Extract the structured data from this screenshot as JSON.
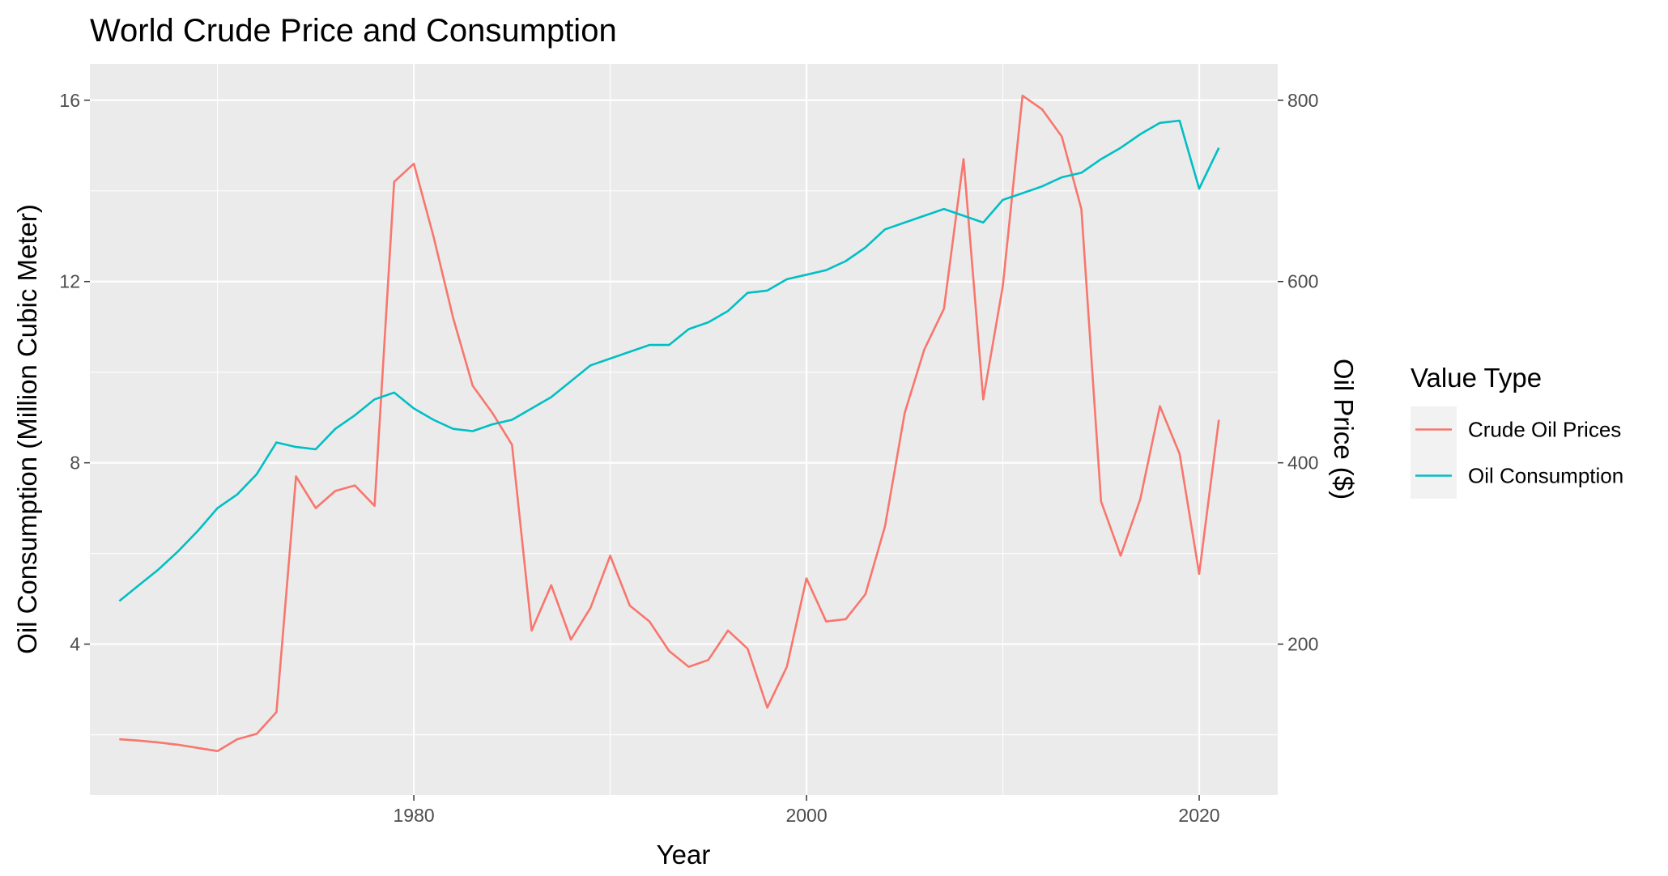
{
  "chart_data": {
    "type": "line",
    "title": "World Crude Price and Consumption",
    "xlabel": "Year",
    "ylabel_left": "Oil Consumption (Million Cubic Meter)",
    "ylabel_right": "Oil Price ($)",
    "xlim": [
      1963.5,
      2024
    ],
    "ylim_left": [
      0.67,
      16.8
    ],
    "ylim_right": [
      33.5,
      840
    ],
    "x_ticks": [
      {
        "value": 1980,
        "label": "1980"
      },
      {
        "value": 2000,
        "label": "2000"
      },
      {
        "value": 2020,
        "label": "2020"
      }
    ],
    "y_left_ticks": [
      {
        "value": 4,
        "label": "4"
      },
      {
        "value": 8,
        "label": "8"
      },
      {
        "value": 12,
        "label": "12"
      },
      {
        "value": 16,
        "label": "16"
      }
    ],
    "y_right_ticks": [
      {
        "value": 200,
        "label": "200"
      },
      {
        "value": 400,
        "label": "400"
      },
      {
        "value": 600,
        "label": "600"
      },
      {
        "value": 800,
        "label": "800"
      }
    ],
    "grid": true,
    "legend": {
      "title": "Value Type",
      "position": "right"
    },
    "series": [
      {
        "name": "Crude Oil Prices",
        "axis": "left",
        "color": "#F8766D",
        "points": [
          [
            1965,
            1.9
          ],
          [
            1966,
            1.87
          ],
          [
            1967,
            1.83
          ],
          [
            1968,
            1.78
          ],
          [
            1969,
            1.71
          ],
          [
            1970,
            1.64
          ],
          [
            1971,
            1.9
          ],
          [
            1972,
            2.02
          ],
          [
            1973,
            2.5
          ],
          [
            1974,
            7.7
          ],
          [
            1975,
            7.0
          ],
          [
            1976,
            7.38
          ],
          [
            1977,
            7.5
          ],
          [
            1978,
            7.05
          ],
          [
            1979,
            14.2
          ],
          [
            1980,
            14.6
          ],
          [
            1981,
            13.0
          ],
          [
            1982,
            11.2
          ],
          [
            1983,
            9.7
          ],
          [
            1984,
            9.1
          ],
          [
            1985,
            8.4
          ],
          [
            1986,
            4.3
          ],
          [
            1987,
            5.3
          ],
          [
            1988,
            4.1
          ],
          [
            1989,
            4.8
          ],
          [
            1990,
            5.95
          ],
          [
            1991,
            4.85
          ],
          [
            1992,
            4.5
          ],
          [
            1993,
            3.85
          ],
          [
            1994,
            3.5
          ],
          [
            1995,
            3.65
          ],
          [
            1996,
            4.3
          ],
          [
            1997,
            3.9
          ],
          [
            1998,
            2.6
          ],
          [
            1999,
            3.5
          ],
          [
            2000,
            5.45
          ],
          [
            2001,
            4.5
          ],
          [
            2002,
            4.55
          ],
          [
            2003,
            5.1
          ],
          [
            2004,
            6.6
          ],
          [
            2005,
            9.1
          ],
          [
            2006,
            10.5
          ],
          [
            2007,
            11.4
          ],
          [
            2008,
            14.7
          ],
          [
            2009,
            9.4
          ],
          [
            2010,
            11.9
          ],
          [
            2011,
            16.1
          ],
          [
            2012,
            15.8
          ],
          [
            2013,
            15.2
          ],
          [
            2014,
            13.6
          ],
          [
            2015,
            7.15
          ],
          [
            2016,
            5.95
          ],
          [
            2017,
            7.2
          ],
          [
            2018,
            9.25
          ],
          [
            2019,
            8.2
          ],
          [
            2020,
            5.55
          ],
          [
            2021,
            8.95
          ]
        ]
      },
      {
        "name": "Oil Consumption",
        "axis": "left",
        "color": "#00BFC4",
        "points": [
          [
            1965,
            4.95
          ],
          [
            1966,
            5.3
          ],
          [
            1967,
            5.65
          ],
          [
            1968,
            6.05
          ],
          [
            1969,
            6.5
          ],
          [
            1970,
            7.0
          ],
          [
            1971,
            7.3
          ],
          [
            1972,
            7.75
          ],
          [
            1973,
            8.45
          ],
          [
            1974,
            8.35
          ],
          [
            1975,
            8.3
          ],
          [
            1976,
            8.75
          ],
          [
            1977,
            9.05
          ],
          [
            1978,
            9.4
          ],
          [
            1979,
            9.55
          ],
          [
            1980,
            9.2
          ],
          [
            1981,
            8.95
          ],
          [
            1982,
            8.75
          ],
          [
            1983,
            8.7
          ],
          [
            1984,
            8.85
          ],
          [
            1985,
            8.95
          ],
          [
            1986,
            9.2
          ],
          [
            1987,
            9.45
          ],
          [
            1988,
            9.8
          ],
          [
            1989,
            10.15
          ],
          [
            1990,
            10.3
          ],
          [
            1991,
            10.45
          ],
          [
            1992,
            10.6
          ],
          [
            1993,
            10.6
          ],
          [
            1994,
            10.95
          ],
          [
            1995,
            11.1
          ],
          [
            1996,
            11.35
          ],
          [
            1997,
            11.75
          ],
          [
            1998,
            11.8
          ],
          [
            1999,
            12.05
          ],
          [
            2000,
            12.15
          ],
          [
            2001,
            12.25
          ],
          [
            2002,
            12.45
          ],
          [
            2003,
            12.75
          ],
          [
            2004,
            13.15
          ],
          [
            2005,
            13.3
          ],
          [
            2006,
            13.45
          ],
          [
            2007,
            13.6
          ],
          [
            2008,
            13.45
          ],
          [
            2009,
            13.3
          ],
          [
            2010,
            13.8
          ],
          [
            2011,
            13.95
          ],
          [
            2012,
            14.1
          ],
          [
            2013,
            14.3
          ],
          [
            2014,
            14.4
          ],
          [
            2015,
            14.7
          ],
          [
            2016,
            14.95
          ],
          [
            2017,
            15.25
          ],
          [
            2018,
            15.5
          ],
          [
            2019,
            15.55
          ],
          [
            2020,
            14.05
          ],
          [
            2021,
            14.95
          ]
        ]
      }
    ]
  }
}
